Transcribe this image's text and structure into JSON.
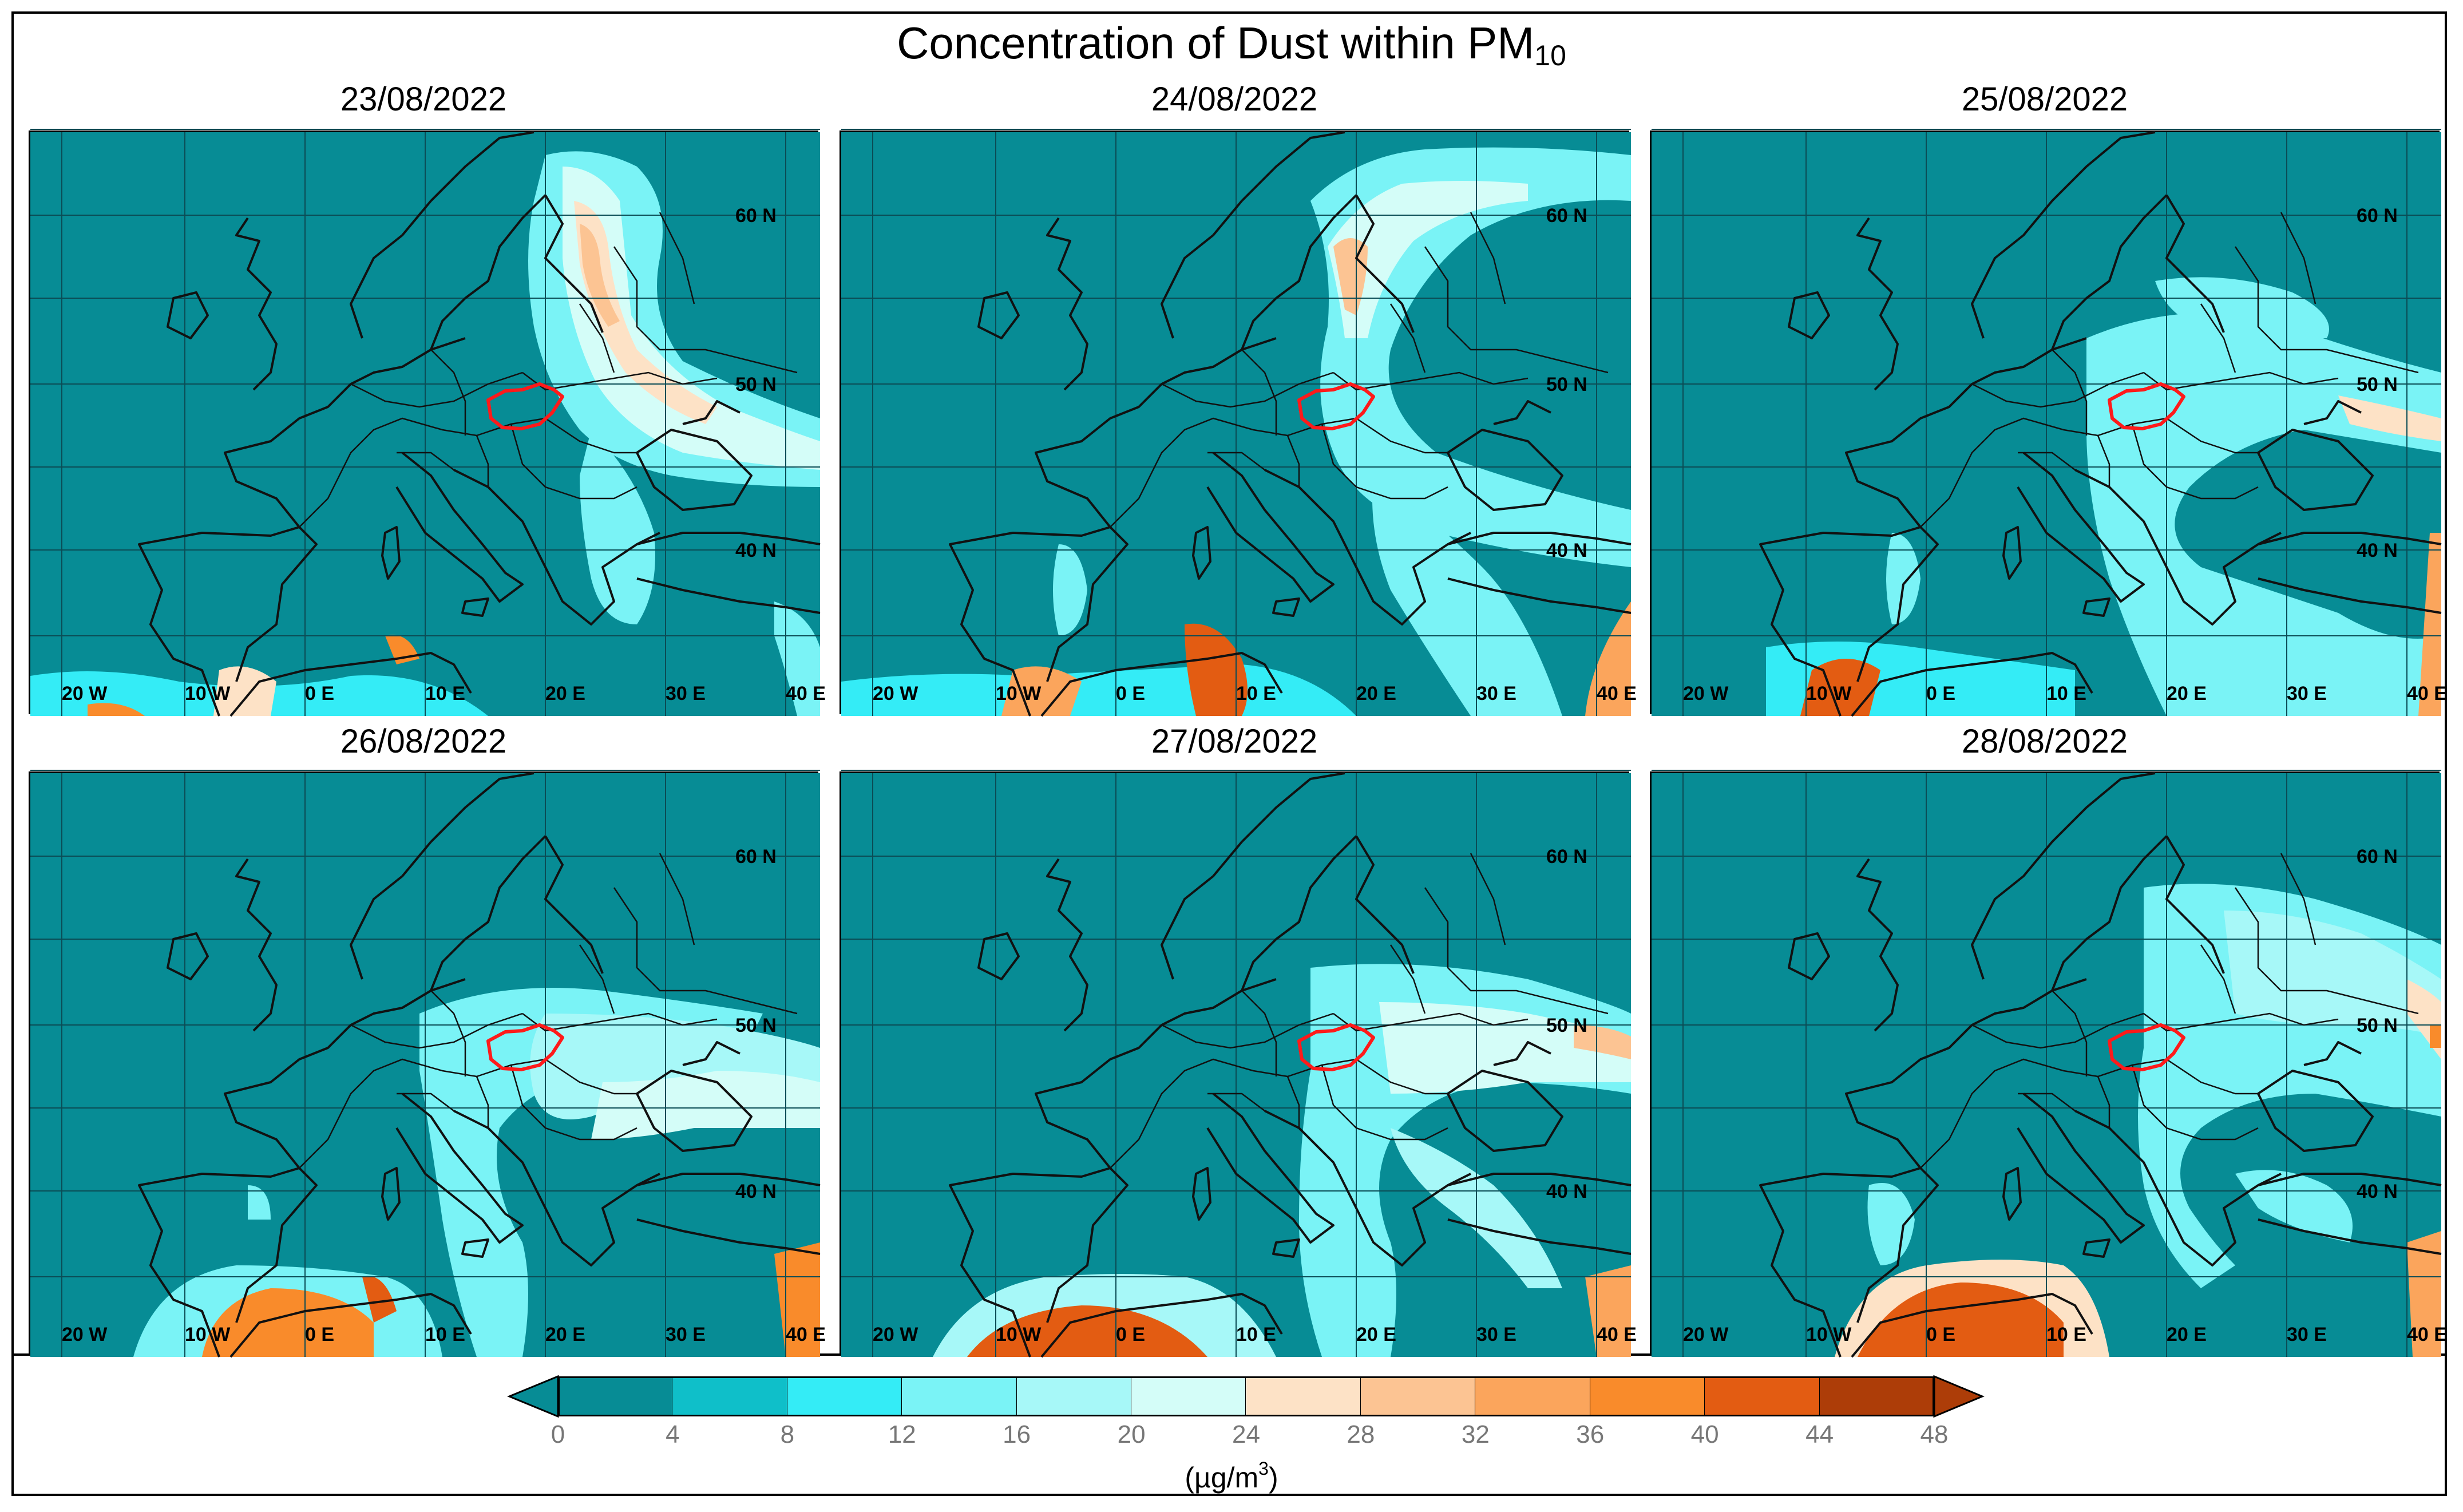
{
  "title": {
    "main": "Concentration of Dust within PM",
    "subscript": "10"
  },
  "colors": {
    "ocean_base": "#078c95",
    "hungary_outline": "#ff1a1a",
    "grid": "#0b4c55",
    "coast": "#111111"
  },
  "panels": [
    {
      "date": "23/08/2022",
      "plume": "ne_strong"
    },
    {
      "date": "24/08/2022",
      "plume": "east_band"
    },
    {
      "date": "25/08/2022",
      "plume": "central_weak"
    },
    {
      "date": "26/08/2022",
      "plume": "central_east"
    },
    {
      "date": "27/08/2022",
      "plume": "east_wide"
    },
    {
      "date": "28/08/2022",
      "plume": "north_east"
    }
  ],
  "axis_labels": {
    "lon": [
      "20 W",
      "10 W",
      "0 E",
      "10 E",
      "20 E",
      "30 E",
      "40 E"
    ],
    "lat": [
      "60 N",
      "50 N",
      "40 N"
    ]
  },
  "colorbar": {
    "ticks": [
      "0",
      "4",
      "8",
      "12",
      "16",
      "20",
      "24",
      "28",
      "32",
      "36",
      "40",
      "44",
      "48"
    ],
    "colors": [
      "#078c95",
      "#0fbfc9",
      "#34ecf6",
      "#7af3f6",
      "#a7f8f8",
      "#d4fdf8",
      "#fde2c6",
      "#fcc493",
      "#fba55c",
      "#f98b2b",
      "#e35c12",
      "#ad3d08"
    ],
    "under_color": "#078c95",
    "over_color": "#ad3d08",
    "unit_prefix": "(µg/m",
    "unit_sup": "3",
    "unit_suffix": ")"
  }
}
